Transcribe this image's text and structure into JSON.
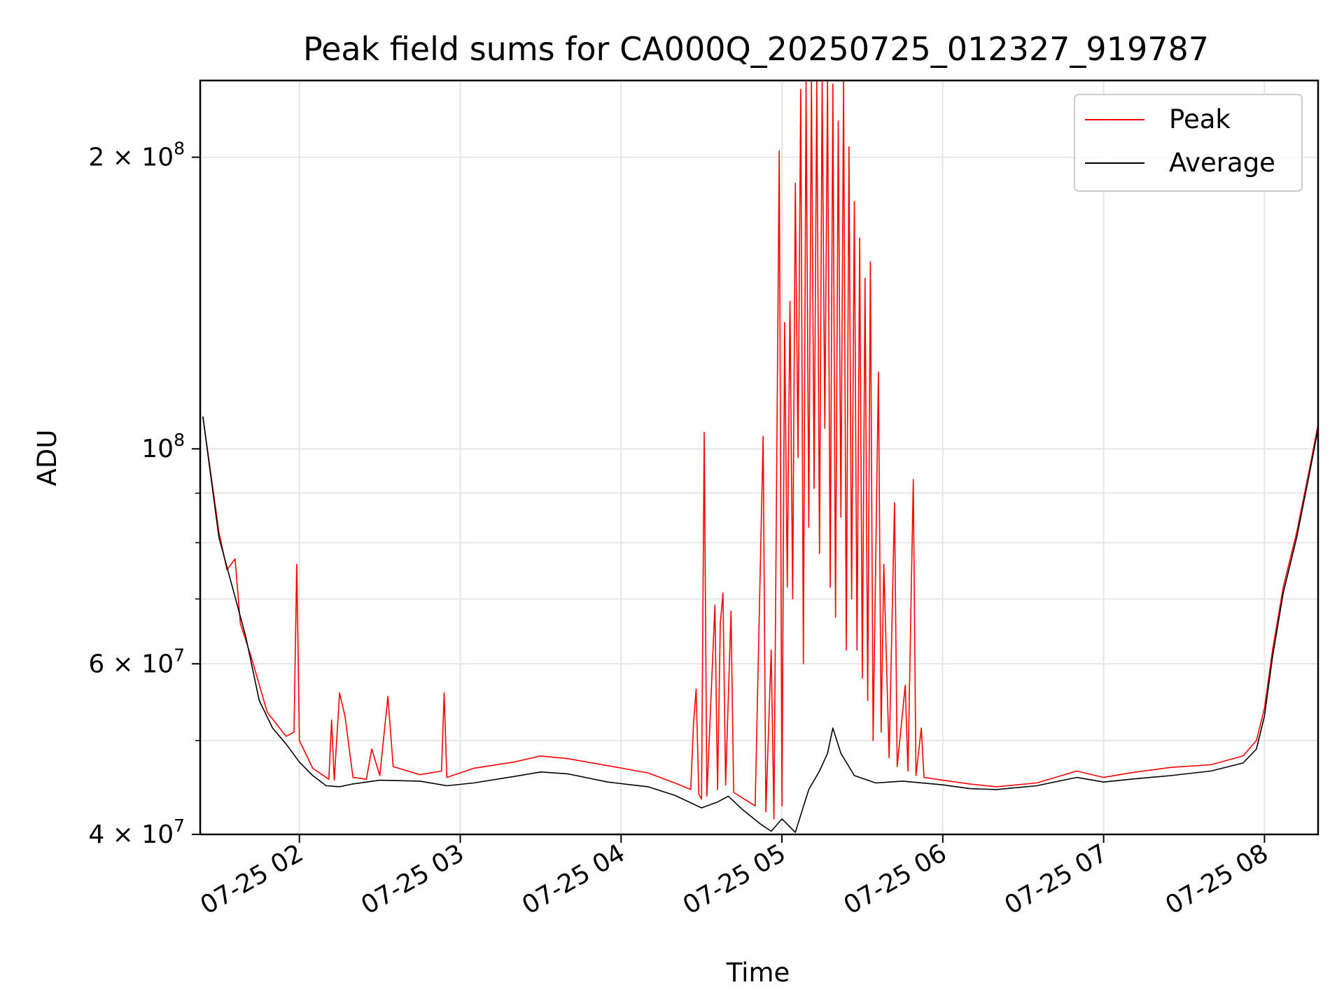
{
  "chart_data": {
    "type": "line",
    "title": "Peak field sums for CA000Q_20250725_012327_919787",
    "xlabel": "Time",
    "ylabel": "ADU",
    "yscale": "log",
    "xlim": [
      "2025-07-25 01:23",
      "2025-07-25 08:20"
    ],
    "ylim": [
      40000000,
      240000000
    ],
    "grid": true,
    "legend_position": "top-right",
    "x_ticks": [
      {
        "value": "2025-07-25 02:00",
        "label": "07-25 02"
      },
      {
        "value": "2025-07-25 03:00",
        "label": "07-25 03"
      },
      {
        "value": "2025-07-25 04:00",
        "label": "07-25 04"
      },
      {
        "value": "2025-07-25 05:00",
        "label": "07-25 05"
      },
      {
        "value": "2025-07-25 06:00",
        "label": "07-25 06"
      },
      {
        "value": "2025-07-25 07:00",
        "label": "07-25 07"
      },
      {
        "value": "2025-07-25 08:00",
        "label": "07-25 08"
      }
    ],
    "y_ticks": [
      {
        "value": 40000000,
        "label_base": "4 × 10",
        "label_exp": "7"
      },
      {
        "value": 60000000,
        "label_base": "6 × 10",
        "label_exp": "7"
      },
      {
        "value": 100000000,
        "label_base": "10",
        "label_exp": "8"
      },
      {
        "value": 200000000,
        "label_base": "2 × 10",
        "label_exp": "8"
      }
    ],
    "y_minor_ticks": [
      50000000,
      70000000,
      80000000,
      90000000
    ],
    "series": [
      {
        "name": "Peak",
        "color": "#ff0000",
        "points": [
          [
            "2025-07-25 01:24",
            108000000
          ],
          [
            "2025-07-25 01:30",
            82000000
          ],
          [
            "2025-07-25 01:33",
            75000000
          ],
          [
            "2025-07-25 01:36",
            77000000
          ],
          [
            "2025-07-25 01:38",
            66000000
          ],
          [
            "2025-07-25 01:42",
            61000000
          ],
          [
            "2025-07-25 01:48",
            53500000
          ],
          [
            "2025-07-25 01:55",
            50500000
          ],
          [
            "2025-07-25 01:58",
            51000000
          ],
          [
            "2025-07-25 01:59",
            76000000
          ],
          [
            "2025-07-25 02:00",
            50000000
          ],
          [
            "2025-07-25 02:05",
            46800000
          ],
          [
            "2025-07-25 02:11",
            45600000
          ],
          [
            "2025-07-25 02:12",
            52500000
          ],
          [
            "2025-07-25 02:13",
            45500000
          ],
          [
            "2025-07-25 02:15",
            56000000
          ],
          [
            "2025-07-25 02:17",
            53000000
          ],
          [
            "2025-07-25 02:20",
            45800000
          ],
          [
            "2025-07-25 02:25",
            45600000
          ],
          [
            "2025-07-25 02:27",
            49000000
          ],
          [
            "2025-07-25 02:30",
            46000000
          ],
          [
            "2025-07-25 02:33",
            55500000
          ],
          [
            "2025-07-25 02:35",
            47000000
          ],
          [
            "2025-07-25 02:45",
            46100000
          ],
          [
            "2025-07-25 02:53",
            46500000
          ],
          [
            "2025-07-25 02:54",
            56000000
          ],
          [
            "2025-07-25 02:55",
            45800000
          ],
          [
            "2025-07-25 03:05",
            46800000
          ],
          [
            "2025-07-25 03:20",
            47500000
          ],
          [
            "2025-07-25 03:30",
            48200000
          ],
          [
            "2025-07-25 03:40",
            47900000
          ],
          [
            "2025-07-25 03:55",
            47100000
          ],
          [
            "2025-07-25 04:10",
            46300000
          ],
          [
            "2025-07-25 04:20",
            45200000
          ],
          [
            "2025-07-25 04:26",
            44500000
          ],
          [
            "2025-07-25 04:27",
            52000000
          ],
          [
            "2025-07-25 04:28",
            56500000
          ],
          [
            "2025-07-25 04:29",
            44000000
          ],
          [
            "2025-07-25 04:30",
            43500000
          ],
          [
            "2025-07-25 04:31",
            104000000
          ],
          [
            "2025-07-25 04:32",
            43800000
          ],
          [
            "2025-07-25 04:35",
            69000000
          ],
          [
            "2025-07-25 04:36",
            44500000
          ],
          [
            "2025-07-25 04:37",
            66000000
          ],
          [
            "2025-07-25 04:38",
            71000000
          ],
          [
            "2025-07-25 04:39",
            45000000
          ],
          [
            "2025-07-25 04:41",
            68000000
          ],
          [
            "2025-07-25 04:42",
            44200000
          ],
          [
            "2025-07-25 04:50",
            42800000
          ],
          [
            "2025-07-25 04:53",
            103000000
          ],
          [
            "2025-07-25 04:54",
            42200000
          ],
          [
            "2025-07-25 04:56",
            62000000
          ],
          [
            "2025-07-25 04:57",
            41500000
          ],
          [
            "2025-07-25 04:59",
            203000000
          ],
          [
            "2025-07-25 05:00",
            42800000
          ],
          [
            "2025-07-25 05:01",
            135000000
          ],
          [
            "2025-07-25 05:02",
            72000000
          ],
          [
            "2025-07-25 05:03",
            142000000
          ],
          [
            "2025-07-25 05:04",
            70000000
          ],
          [
            "2025-07-25 05:05",
            188000000
          ],
          [
            "2025-07-25 05:06",
            98000000
          ],
          [
            "2025-07-25 05:07",
            235000000
          ],
          [
            "2025-07-25 05:08",
            60000000
          ],
          [
            "2025-07-25 05:09",
            240000000
          ],
          [
            "2025-07-25 05:10",
            83000000
          ],
          [
            "2025-07-25 05:11",
            240000000
          ],
          [
            "2025-07-25 05:12",
            91000000
          ],
          [
            "2025-07-25 05:13",
            240000000
          ],
          [
            "2025-07-25 05:14",
            78000000
          ],
          [
            "2025-07-25 05:15",
            240000000
          ],
          [
            "2025-07-25 05:16",
            105000000
          ],
          [
            "2025-07-25 05:17",
            240000000
          ],
          [
            "2025-07-25 05:18",
            72000000
          ],
          [
            "2025-07-25 05:19",
            238000000
          ],
          [
            "2025-07-25 05:20",
            67000000
          ],
          [
            "2025-07-25 05:21",
            218000000
          ],
          [
            "2025-07-25 05:22",
            85000000
          ],
          [
            "2025-07-25 05:23",
            240000000
          ],
          [
            "2025-07-25 05:24",
            62000000
          ],
          [
            "2025-07-25 05:25",
            205000000
          ],
          [
            "2025-07-25 05:26",
            70000000
          ],
          [
            "2025-07-25 05:27",
            180000000
          ],
          [
            "2025-07-25 05:28",
            62000000
          ],
          [
            "2025-07-25 05:29",
            165000000
          ],
          [
            "2025-07-25 05:30",
            58000000
          ],
          [
            "2025-07-25 05:31",
            150000000
          ],
          [
            "2025-07-25 05:32",
            55000000
          ],
          [
            "2025-07-25 05:33",
            156000000
          ],
          [
            "2025-07-25 05:34",
            50000000
          ],
          [
            "2025-07-25 05:36",
            120000000
          ],
          [
            "2025-07-25 05:37",
            51000000
          ],
          [
            "2025-07-25 05:38",
            76000000
          ],
          [
            "2025-07-25 05:40",
            48000000
          ],
          [
            "2025-07-25 05:42",
            88000000
          ],
          [
            "2025-07-25 05:43",
            47000000
          ],
          [
            "2025-07-25 05:46",
            57000000
          ],
          [
            "2025-07-25 05:47",
            46500000
          ],
          [
            "2025-07-25 05:49",
            93000000
          ],
          [
            "2025-07-25 05:50",
            46000000
          ],
          [
            "2025-07-25 05:52",
            51500000
          ],
          [
            "2025-07-25 05:53",
            45800000
          ],
          [
            "2025-07-25 06:00",
            45500000
          ],
          [
            "2025-07-25 06:10",
            45100000
          ],
          [
            "2025-07-25 06:20",
            44800000
          ],
          [
            "2025-07-25 06:35",
            45200000
          ],
          [
            "2025-07-25 06:50",
            46500000
          ],
          [
            "2025-07-25 07:00",
            45800000
          ],
          [
            "2025-07-25 07:10",
            46300000
          ],
          [
            "2025-07-25 07:25",
            46900000
          ],
          [
            "2025-07-25 07:40",
            47200000
          ],
          [
            "2025-07-25 07:52",
            48200000
          ],
          [
            "2025-07-25 07:57",
            50000000
          ],
          [
            "2025-07-25 08:00",
            54000000
          ],
          [
            "2025-07-25 08:03",
            62000000
          ],
          [
            "2025-07-25 08:07",
            72000000
          ],
          [
            "2025-07-25 08:12",
            82000000
          ],
          [
            "2025-07-25 08:17",
            96000000
          ],
          [
            "2025-07-25 08:20",
            106000000
          ]
        ]
      },
      {
        "name": "Average",
        "color": "#000000",
        "points": [
          [
            "2025-07-25 01:24",
            108000000
          ],
          [
            "2025-07-25 01:30",
            81000000
          ],
          [
            "2025-07-25 01:35",
            72000000
          ],
          [
            "2025-07-25 01:40",
            64000000
          ],
          [
            "2025-07-25 01:45",
            55000000
          ],
          [
            "2025-07-25 01:50",
            51500000
          ],
          [
            "2025-07-25 01:55",
            49600000
          ],
          [
            "2025-07-25 02:00",
            47500000
          ],
          [
            "2025-07-25 02:05",
            46000000
          ],
          [
            "2025-07-25 02:10",
            44900000
          ],
          [
            "2025-07-25 02:15",
            44800000
          ],
          [
            "2025-07-25 02:20",
            45100000
          ],
          [
            "2025-07-25 02:30",
            45500000
          ],
          [
            "2025-07-25 02:45",
            45400000
          ],
          [
            "2025-07-25 02:55",
            44900000
          ],
          [
            "2025-07-25 03:05",
            45200000
          ],
          [
            "2025-07-25 03:20",
            45900000
          ],
          [
            "2025-07-25 03:30",
            46400000
          ],
          [
            "2025-07-25 03:40",
            46200000
          ],
          [
            "2025-07-25 03:55",
            45300000
          ],
          [
            "2025-07-25 04:10",
            44800000
          ],
          [
            "2025-07-25 04:20",
            43900000
          ],
          [
            "2025-07-25 04:30",
            42600000
          ],
          [
            "2025-07-25 04:36",
            43200000
          ],
          [
            "2025-07-25 04:40",
            43800000
          ],
          [
            "2025-07-25 04:45",
            42500000
          ],
          [
            "2025-07-25 04:52",
            41000000
          ],
          [
            "2025-07-25 04:56",
            40300000
          ],
          [
            "2025-07-25 05:00",
            41500000
          ],
          [
            "2025-07-25 05:05",
            40200000
          ],
          [
            "2025-07-25 05:10",
            44500000
          ],
          [
            "2025-07-25 05:14",
            46500000
          ],
          [
            "2025-07-25 05:17",
            48500000
          ],
          [
            "2025-07-25 05:19",
            51500000
          ],
          [
            "2025-07-25 05:22",
            48500000
          ],
          [
            "2025-07-25 05:27",
            46000000
          ],
          [
            "2025-07-25 05:35",
            45200000
          ],
          [
            "2025-07-25 05:45",
            45400000
          ],
          [
            "2025-07-25 06:00",
            45000000
          ],
          [
            "2025-07-25 06:10",
            44600000
          ],
          [
            "2025-07-25 06:20",
            44500000
          ],
          [
            "2025-07-25 06:35",
            44900000
          ],
          [
            "2025-07-25 06:50",
            45800000
          ],
          [
            "2025-07-25 07:00",
            45300000
          ],
          [
            "2025-07-25 07:10",
            45600000
          ],
          [
            "2025-07-25 07:25",
            46000000
          ],
          [
            "2025-07-25 07:40",
            46500000
          ],
          [
            "2025-07-25 07:52",
            47400000
          ],
          [
            "2025-07-25 07:57",
            49000000
          ],
          [
            "2025-07-25 08:00",
            53000000
          ],
          [
            "2025-07-25 08:03",
            61000000
          ],
          [
            "2025-07-25 08:07",
            71000000
          ],
          [
            "2025-07-25 08:12",
            81000000
          ],
          [
            "2025-07-25 08:17",
            95000000
          ],
          [
            "2025-07-25 08:20",
            105000000
          ]
        ]
      }
    ]
  }
}
